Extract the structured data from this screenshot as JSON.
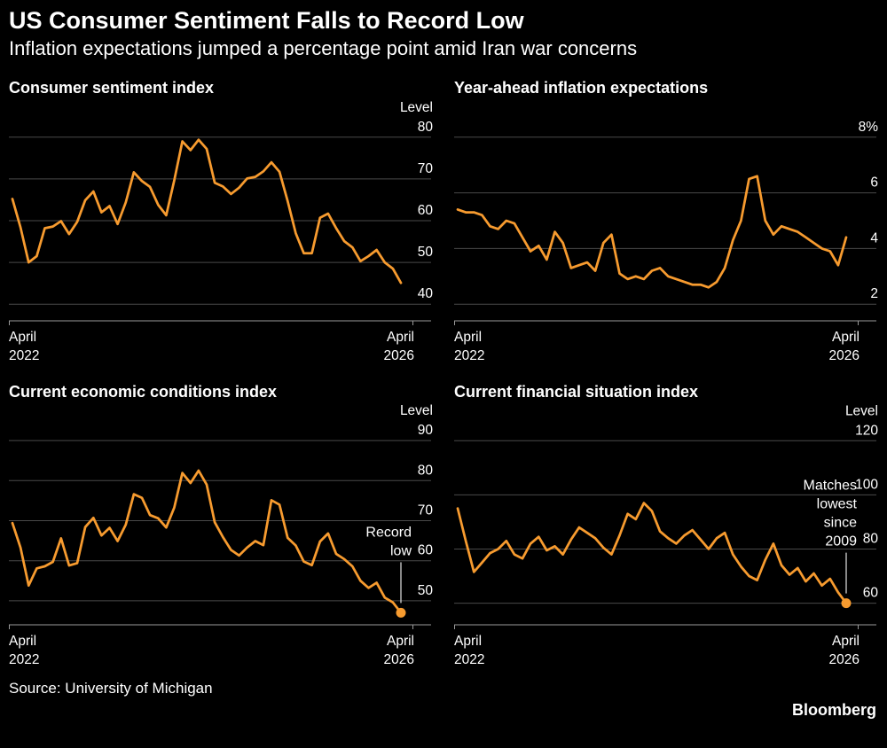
{
  "header": {
    "title": "US Consumer Sentiment Falls to Record Low",
    "subtitle": "Inflation expectations jumped a percentage point amid Iran war concerns"
  },
  "footer": {
    "source": "Source: University of Michigan",
    "brand": "Bloomberg"
  },
  "colors": {
    "background": "#000000",
    "text": "#ffffff",
    "line": "#f79b2f",
    "grid": "#4a4a4a",
    "axis": "#9a9a9a",
    "annotation_line": "#d9d9d9"
  },
  "chart_data": [
    {
      "type": "line",
      "title": "Consumer sentiment index",
      "unit_label": "Level",
      "yticks": [
        {
          "value": 40,
          "label": "40"
        },
        {
          "value": 50,
          "label": "50"
        },
        {
          "value": 60,
          "label": "60"
        },
        {
          "value": 70,
          "label": "70"
        },
        {
          "value": 80,
          "label": "80"
        }
      ],
      "ylim": [
        36,
        84
      ],
      "x_start_label": [
        "April",
        "2022"
      ],
      "x_end_label": [
        "April",
        "2026"
      ],
      "values": [
        65.2,
        58.4,
        50.0,
        51.5,
        58.2,
        58.6,
        59.9,
        56.8,
        59.7,
        64.9,
        67.0,
        62.0,
        63.5,
        59.2,
        64.4,
        71.6,
        69.5,
        68.1,
        63.8,
        61.3,
        69.7,
        79.0,
        76.9,
        79.4,
        77.2,
        69.1,
        68.2,
        66.4,
        67.9,
        70.1,
        70.5,
        71.8,
        74.0,
        71.7,
        64.7,
        57.0,
        52.2,
        52.2,
        60.7,
        61.7,
        58.2,
        55.1,
        53.6,
        50.3,
        51.5,
        53.0,
        50.0,
        48.5,
        45.1
      ],
      "end_dot": false,
      "annotation": null
    },
    {
      "type": "line",
      "title": "Year-ahead inflation expectations",
      "unit_label": null,
      "yticks": [
        {
          "value": 2,
          "label": "2"
        },
        {
          "value": 4,
          "label": "4"
        },
        {
          "value": 6,
          "label": "6"
        },
        {
          "value": 8,
          "label": "8%"
        }
      ],
      "ylim": [
        1.4,
        8.6
      ],
      "x_start_label": [
        "April",
        "2022"
      ],
      "x_end_label": [
        "April",
        "2026"
      ],
      "values": [
        5.4,
        5.3,
        5.3,
        5.2,
        4.8,
        4.7,
        5.0,
        4.9,
        4.4,
        3.9,
        4.1,
        3.6,
        4.6,
        4.2,
        3.3,
        3.4,
        3.5,
        3.2,
        4.2,
        4.5,
        3.1,
        2.9,
        3.0,
        2.9,
        3.2,
        3.3,
        3.0,
        2.9,
        2.8,
        2.7,
        2.7,
        2.6,
        2.8,
        3.3,
        4.3,
        5.0,
        6.5,
        6.6,
        5.0,
        4.5,
        4.8,
        4.7,
        4.6,
        4.4,
        4.2,
        4.0,
        3.9,
        3.4,
        4.4
      ],
      "end_dot": false,
      "annotation": null
    },
    {
      "type": "line",
      "title": "Current economic conditions index",
      "unit_label": "Level",
      "yticks": [
        {
          "value": 50,
          "label": "50"
        },
        {
          "value": 60,
          "label": "60"
        },
        {
          "value": 70,
          "label": "70"
        },
        {
          "value": 80,
          "label": "80"
        },
        {
          "value": 90,
          "label": "90"
        }
      ],
      "ylim": [
        44,
        94
      ],
      "x_start_label": [
        "April",
        "2022"
      ],
      "x_end_label": [
        "April",
        "2026"
      ],
      "values": [
        69.4,
        63.3,
        53.8,
        58.1,
        58.6,
        59.7,
        65.6,
        58.8,
        59.4,
        68.4,
        70.7,
        66.3,
        68.2,
        64.9,
        69.0,
        76.6,
        75.7,
        71.4,
        70.6,
        68.3,
        73.3,
        81.9,
        79.4,
        82.5,
        79.0,
        69.6,
        65.9,
        62.7,
        61.3,
        63.3,
        64.9,
        63.9,
        75.1,
        74.0,
        65.7,
        63.8,
        59.8,
        58.9,
        64.8,
        66.8,
        61.7,
        60.4,
        58.6,
        55.0,
        53.2,
        54.5,
        50.8,
        49.6,
        47.0
      ],
      "end_dot": true,
      "annotation": {
        "lines": [
          "Record",
          "low"
        ]
      }
    },
    {
      "type": "line",
      "title": "Current financial situation index",
      "unit_label": "Level",
      "yticks": [
        {
          "value": 60,
          "label": "60"
        },
        {
          "value": 80,
          "label": "80"
        },
        {
          "value": 100,
          "label": "100"
        },
        {
          "value": 120,
          "label": "120"
        }
      ],
      "ylim": [
        52,
        126
      ],
      "x_start_label": [
        "April",
        "2022"
      ],
      "x_end_label": [
        "April",
        "2026"
      ],
      "values": [
        95.0,
        83.0,
        71.5,
        75.0,
        78.5,
        80.0,
        83.0,
        78.0,
        76.5,
        82.0,
        84.5,
        79.5,
        81.0,
        78.0,
        83.5,
        88.0,
        86.0,
        84.0,
        80.5,
        78.0,
        85.0,
        93.0,
        91.0,
        97.0,
        94.0,
        86.5,
        84.0,
        82.0,
        85.0,
        87.0,
        83.5,
        80.0,
        84.0,
        86.0,
        78.0,
        73.5,
        70.0,
        68.5,
        76.0,
        82.0,
        74.0,
        70.5,
        73.0,
        68.0,
        71.0,
        66.5,
        69.0,
        64.0,
        60.0
      ],
      "end_dot": true,
      "annotation": {
        "lines": [
          "Matches",
          "lowest",
          "since",
          "2009"
        ]
      }
    }
  ]
}
